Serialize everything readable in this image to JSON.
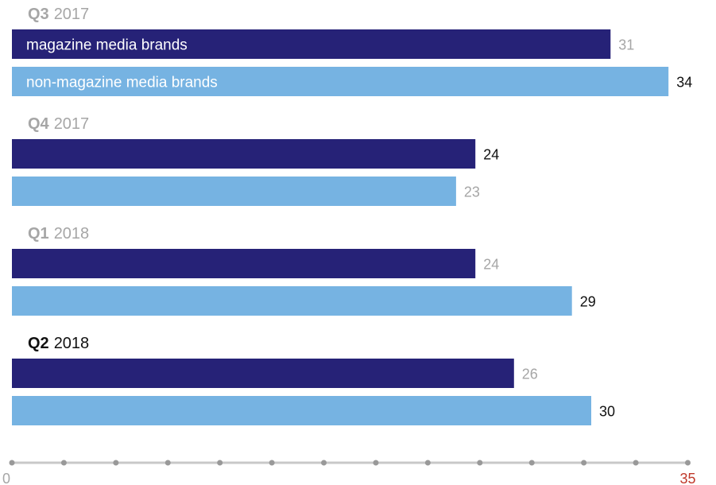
{
  "chart_data": {
    "type": "bar",
    "orientation": "horizontal",
    "categories": [
      {
        "quarter": "Q3",
        "year": "2017",
        "highlighted": false
      },
      {
        "quarter": "Q4",
        "year": "2017",
        "highlighted": false
      },
      {
        "quarter": "Q1",
        "year": "2018",
        "highlighted": false
      },
      {
        "quarter": "Q2",
        "year": "2018",
        "highlighted": true
      }
    ],
    "series": [
      {
        "name": "magazine media brands",
        "color": "#262277",
        "values": [
          31,
          24,
          24,
          26
        ]
      },
      {
        "name": "non-magazine media brands",
        "color": "#76b3e2",
        "values": [
          34,
          23,
          29,
          30
        ]
      }
    ],
    "emphasized_values": [
      [
        false,
        true
      ],
      [
        true,
        false
      ],
      [
        false,
        true
      ],
      [
        false,
        true
      ]
    ],
    "xlim": [
      0,
      35
    ],
    "x_tick_labels": [
      "0",
      "35"
    ],
    "colors": {
      "muted_text": "#a6a6a6",
      "dark_text": "#111111",
      "axis_line": "#c8c8c8",
      "axis_dot": "#999999",
      "axis_max_label": "#c0392b"
    }
  }
}
